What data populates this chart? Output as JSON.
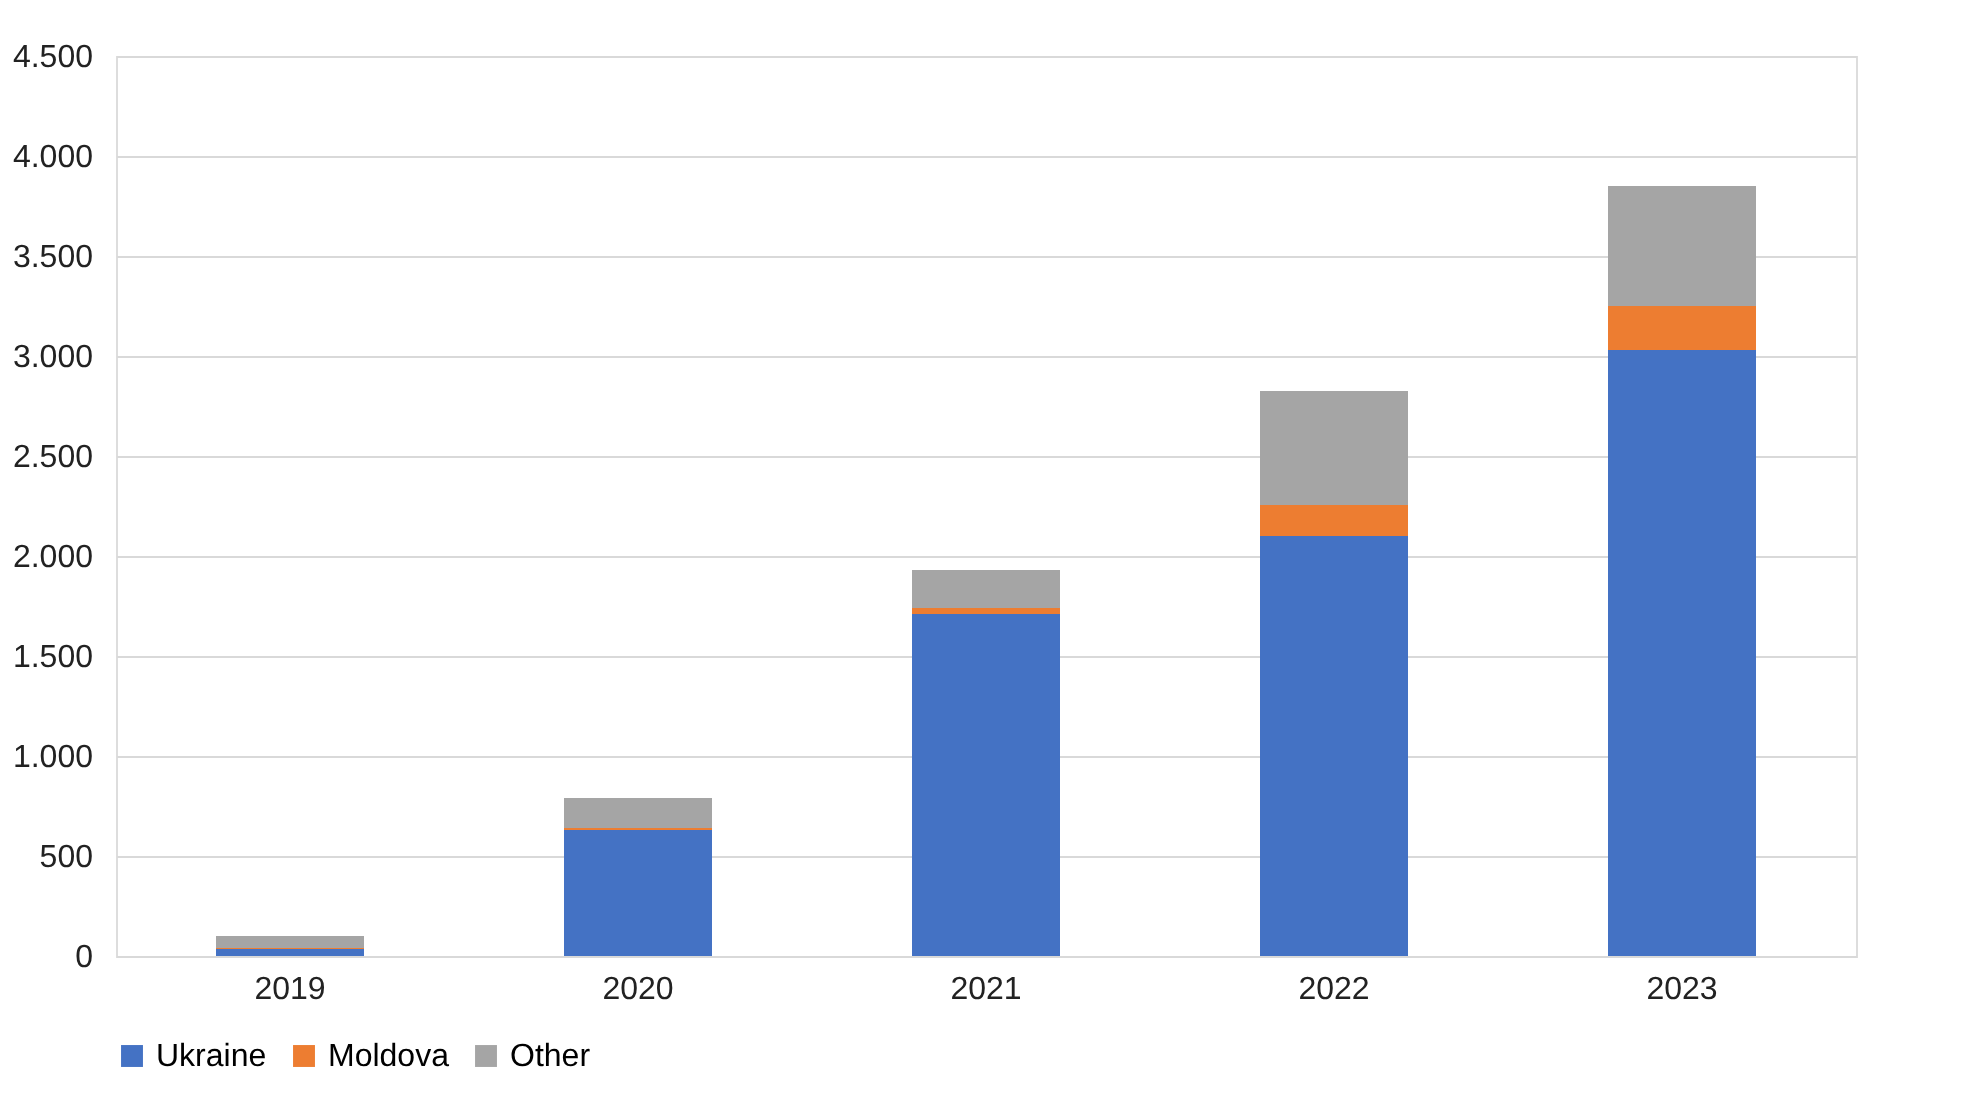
{
  "chart_data": {
    "type": "bar",
    "stacked": true,
    "categories": [
      "2019",
      "2020",
      "2021",
      "2022",
      "2023"
    ],
    "series": [
      {
        "name": "Ukraine",
        "color": "#4472c4",
        "values": [
          35,
          630,
          1710,
          2100,
          3030
        ]
      },
      {
        "name": "Moldova",
        "color": "#ed7d31",
        "values": [
          5,
          10,
          30,
          155,
          220
        ]
      },
      {
        "name": "Other",
        "color": "#a5a5a5",
        "values": [
          60,
          150,
          190,
          570,
          600
        ]
      }
    ],
    "ylim": [
      0,
      4500
    ],
    "yticks": [
      0,
      500,
      {
        "value": 1000,
        "label": "1.000"
      },
      {
        "value": 1500,
        "label": "1.500"
      },
      {
        "value": 2000,
        "label": "2.000"
      },
      {
        "value": 2500,
        "label": "2.500"
      },
      {
        "value": 3000,
        "label": "3.000"
      },
      {
        "value": 3500,
        "label": "3.500"
      },
      {
        "value": 4000,
        "label": "4.000"
      },
      {
        "value": 4500,
        "label": "4.500"
      }
    ],
    "grid": "y",
    "legend": "bottom"
  }
}
